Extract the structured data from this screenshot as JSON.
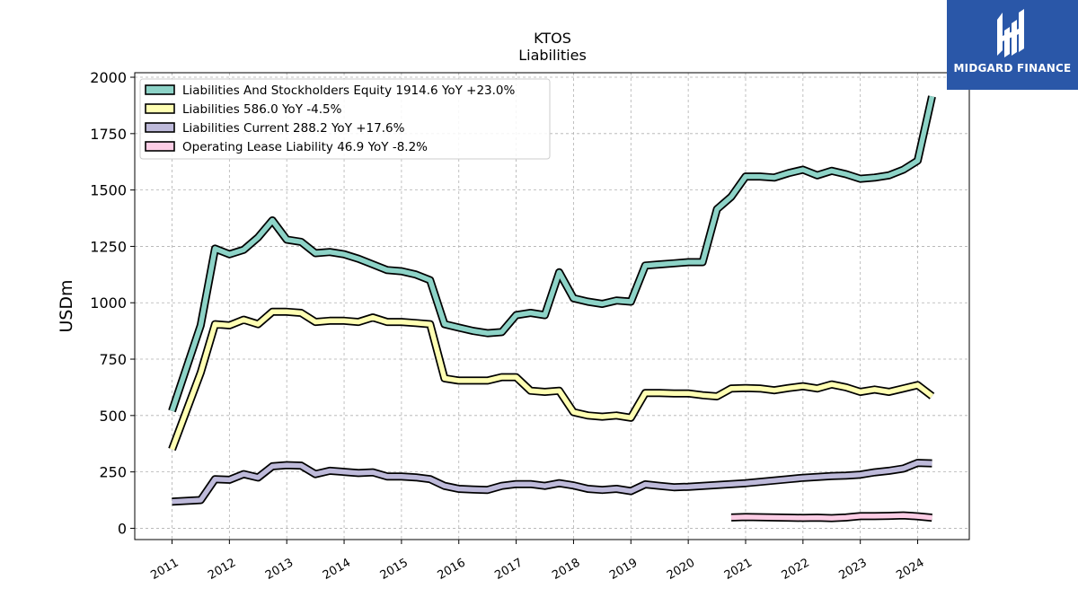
{
  "chart_data": {
    "type": "line",
    "title": "KTOS",
    "subtitle": "Liabilities",
    "ylabel": "USDm",
    "ylim": [
      -50,
      2020
    ],
    "xlim": [
      2010.35,
      2024.9
    ],
    "yticks": [
      0,
      250,
      500,
      750,
      1000,
      1250,
      1500,
      1750,
      2000
    ],
    "xticks": [
      "2011",
      "2012",
      "2013",
      "2014",
      "2015",
      "2016",
      "2017",
      "2018",
      "2019",
      "2020",
      "2021",
      "2022",
      "2023",
      "2024"
    ],
    "grid": true,
    "legend_position": "top-left",
    "series": [
      {
        "name": "Liabilities And Stockholders Equity",
        "legend": "Liabilities And Stockholders Equity  1914.6 YoY +23.0%",
        "color": "#8dd3c7",
        "points": [
          [
            2011.0,
            520
          ],
          [
            2011.5,
            900
          ],
          [
            2011.75,
            1240
          ],
          [
            2012.0,
            1215
          ],
          [
            2012.25,
            1235
          ],
          [
            2012.5,
            1290
          ],
          [
            2012.75,
            1365
          ],
          [
            2013.0,
            1280
          ],
          [
            2013.25,
            1270
          ],
          [
            2013.5,
            1220
          ],
          [
            2013.75,
            1225
          ],
          [
            2014.0,
            1215
          ],
          [
            2014.25,
            1195
          ],
          [
            2014.5,
            1170
          ],
          [
            2014.75,
            1145
          ],
          [
            2015.0,
            1140
          ],
          [
            2015.25,
            1125
          ],
          [
            2015.5,
            1100
          ],
          [
            2015.75,
            905
          ],
          [
            2016.0,
            890
          ],
          [
            2016.25,
            875
          ],
          [
            2016.5,
            865
          ],
          [
            2016.75,
            870
          ],
          [
            2017.0,
            945
          ],
          [
            2017.25,
            955
          ],
          [
            2017.5,
            945
          ],
          [
            2017.75,
            1135
          ],
          [
            2018.0,
            1020
          ],
          [
            2018.25,
            1005
          ],
          [
            2018.5,
            995
          ],
          [
            2018.75,
            1010
          ],
          [
            2019.0,
            1005
          ],
          [
            2019.25,
            1165
          ],
          [
            2019.5,
            1170
          ],
          [
            2019.75,
            1175
          ],
          [
            2020.0,
            1180
          ],
          [
            2020.25,
            1180
          ],
          [
            2020.5,
            1415
          ],
          [
            2020.75,
            1470
          ],
          [
            2021.0,
            1560
          ],
          [
            2021.25,
            1560
          ],
          [
            2021.5,
            1555
          ],
          [
            2021.75,
            1575
          ],
          [
            2022.0,
            1590
          ],
          [
            2022.25,
            1565
          ],
          [
            2022.5,
            1585
          ],
          [
            2022.75,
            1570
          ],
          [
            2023.0,
            1550
          ],
          [
            2023.25,
            1555
          ],
          [
            2023.5,
            1565
          ],
          [
            2023.75,
            1590
          ],
          [
            2024.0,
            1630
          ],
          [
            2024.25,
            1915
          ]
        ]
      },
      {
        "name": "Liabilities",
        "legend": "Liabilities  586.0 YoY -4.5%",
        "color": "#ffffb3",
        "points": [
          [
            2011.0,
            350
          ],
          [
            2011.5,
            690
          ],
          [
            2011.75,
            905
          ],
          [
            2012.0,
            900
          ],
          [
            2012.25,
            925
          ],
          [
            2012.5,
            905
          ],
          [
            2012.75,
            960
          ],
          [
            2013.0,
            960
          ],
          [
            2013.25,
            955
          ],
          [
            2013.5,
            915
          ],
          [
            2013.75,
            920
          ],
          [
            2014.0,
            920
          ],
          [
            2014.25,
            915
          ],
          [
            2014.5,
            935
          ],
          [
            2014.75,
            915
          ],
          [
            2015.0,
            915
          ],
          [
            2015.25,
            910
          ],
          [
            2015.5,
            905
          ],
          [
            2015.75,
            665
          ],
          [
            2016.0,
            655
          ],
          [
            2016.25,
            655
          ],
          [
            2016.5,
            655
          ],
          [
            2016.75,
            670
          ],
          [
            2017.0,
            670
          ],
          [
            2017.25,
            610
          ],
          [
            2017.5,
            605
          ],
          [
            2017.75,
            610
          ],
          [
            2018.0,
            515
          ],
          [
            2018.25,
            500
          ],
          [
            2018.5,
            495
          ],
          [
            2018.75,
            500
          ],
          [
            2019.0,
            490
          ],
          [
            2019.25,
            600
          ],
          [
            2019.5,
            600
          ],
          [
            2019.75,
            598
          ],
          [
            2020.0,
            598
          ],
          [
            2020.25,
            590
          ],
          [
            2020.5,
            585
          ],
          [
            2020.75,
            620
          ],
          [
            2021.0,
            622
          ],
          [
            2021.25,
            620
          ],
          [
            2021.5,
            612
          ],
          [
            2021.75,
            622
          ],
          [
            2022.0,
            630
          ],
          [
            2022.25,
            620
          ],
          [
            2022.5,
            638
          ],
          [
            2022.75,
            625
          ],
          [
            2023.0,
            605
          ],
          [
            2023.25,
            615
          ],
          [
            2023.5,
            605
          ],
          [
            2023.75,
            620
          ],
          [
            2024.0,
            635
          ],
          [
            2024.25,
            586
          ]
        ]
      },
      {
        "name": "Liabilities Current",
        "legend": "Liabilities Current  288.2 YoY +17.6%",
        "color": "#bebada",
        "points": [
          [
            2011.0,
            118
          ],
          [
            2011.5,
            125
          ],
          [
            2011.75,
            218
          ],
          [
            2012.0,
            215
          ],
          [
            2012.25,
            240
          ],
          [
            2012.5,
            225
          ],
          [
            2012.75,
            275
          ],
          [
            2013.0,
            280
          ],
          [
            2013.25,
            278
          ],
          [
            2013.5,
            240
          ],
          [
            2013.75,
            255
          ],
          [
            2014.0,
            250
          ],
          [
            2014.25,
            245
          ],
          [
            2014.5,
            248
          ],
          [
            2014.75,
            230
          ],
          [
            2015.0,
            230
          ],
          [
            2015.25,
            226
          ],
          [
            2015.5,
            218
          ],
          [
            2015.75,
            188
          ],
          [
            2016.0,
            175
          ],
          [
            2016.25,
            172
          ],
          [
            2016.5,
            170
          ],
          [
            2016.75,
            188
          ],
          [
            2017.0,
            196
          ],
          [
            2017.25,
            196
          ],
          [
            2017.5,
            188
          ],
          [
            2017.75,
            200
          ],
          [
            2018.0,
            190
          ],
          [
            2018.25,
            175
          ],
          [
            2018.5,
            170
          ],
          [
            2018.75,
            175
          ],
          [
            2019.0,
            165
          ],
          [
            2019.25,
            195
          ],
          [
            2019.5,
            188
          ],
          [
            2019.75,
            182
          ],
          [
            2020.0,
            184
          ],
          [
            2020.25,
            188
          ],
          [
            2020.5,
            192
          ],
          [
            2020.75,
            196
          ],
          [
            2021.0,
            200
          ],
          [
            2021.25,
            206
          ],
          [
            2021.5,
            212
          ],
          [
            2021.75,
            218
          ],
          [
            2022.0,
            224
          ],
          [
            2022.25,
            228
          ],
          [
            2022.5,
            232
          ],
          [
            2022.75,
            234
          ],
          [
            2023.0,
            238
          ],
          [
            2023.25,
            248
          ],
          [
            2023.5,
            255
          ],
          [
            2023.75,
            265
          ],
          [
            2024.0,
            290
          ],
          [
            2024.25,
            288
          ]
        ]
      },
      {
        "name": "Operating Lease Liability",
        "legend": "Operating Lease Liability  46.9 YoY -8.2%",
        "color": "#fccde5",
        "points": [
          [
            2020.75,
            48
          ],
          [
            2021.0,
            50
          ],
          [
            2021.25,
            49
          ],
          [
            2021.5,
            48
          ],
          [
            2021.75,
            47
          ],
          [
            2022.0,
            46
          ],
          [
            2022.25,
            47
          ],
          [
            2022.5,
            45
          ],
          [
            2022.75,
            48
          ],
          [
            2023.0,
            54
          ],
          [
            2023.25,
            54
          ],
          [
            2023.5,
            55
          ],
          [
            2023.75,
            57
          ],
          [
            2024.0,
            53
          ],
          [
            2024.25,
            47
          ]
        ]
      }
    ]
  },
  "logo": {
    "text": "MIDGARD FINANCE"
  }
}
